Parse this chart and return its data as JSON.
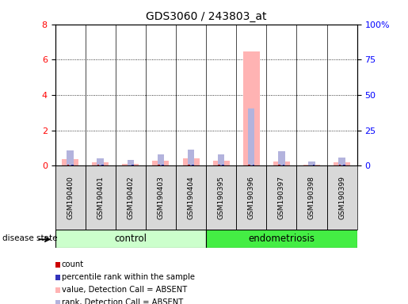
{
  "title": "GDS3060 / 243803_at",
  "samples": [
    "GSM190400",
    "GSM190401",
    "GSM190402",
    "GSM190403",
    "GSM190404",
    "GSM190395",
    "GSM190396",
    "GSM190397",
    "GSM190398",
    "GSM190399"
  ],
  "n_control": 5,
  "n_endo": 5,
  "values_absent": [
    0.35,
    0.18,
    0.1,
    0.28,
    0.42,
    0.3,
    6.45,
    0.22,
    0.05,
    0.2
  ],
  "rank_absent": [
    0.85,
    0.42,
    0.32,
    0.65,
    0.9,
    0.65,
    3.25,
    0.8,
    0.22,
    0.48
  ],
  "count": [
    0.05,
    0.04,
    0.03,
    0.05,
    0.04,
    0.04,
    0.04,
    0.04,
    0.03,
    0.04
  ],
  "percentile_rank": [
    0.06,
    0.05,
    0.04,
    0.06,
    0.06,
    0.05,
    0.05,
    0.06,
    0.04,
    0.05
  ],
  "ylim_left": [
    0,
    8
  ],
  "ylim_right": [
    0,
    100
  ],
  "yticks_left": [
    0,
    2,
    4,
    6,
    8
  ],
  "yticks_right": [
    0,
    25,
    50,
    75,
    100
  ],
  "yticklabels_right": [
    "0",
    "25",
    "50",
    "75",
    "100%"
  ],
  "color_count": "#cc0000",
  "color_percentile": "#3333bb",
  "color_value_absent": "#ffb3b3",
  "color_rank_absent": "#b3b3dd",
  "color_group_control": "#ccffcc",
  "color_group_endometriosis": "#44ee44",
  "color_sample_bg": "#d8d8d8",
  "color_grid": "black",
  "legend_items": [
    {
      "label": "count",
      "color": "#cc0000"
    },
    {
      "label": "percentile rank within the sample",
      "color": "#3333bb"
    },
    {
      "label": "value, Detection Call = ABSENT",
      "color": "#ffb3b3"
    },
    {
      "label": "rank, Detection Call = ABSENT",
      "color": "#b3b3dd"
    }
  ]
}
